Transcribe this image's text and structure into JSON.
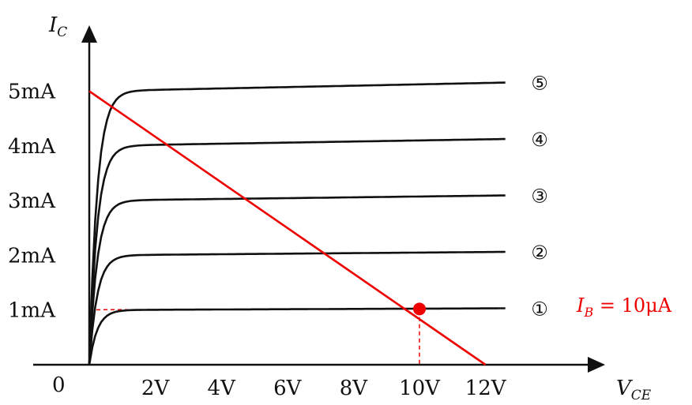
{
  "chart_data": {
    "type": "line",
    "xlabel": "V",
    "xlabel_sub": "CE",
    "ylabel": "I",
    "ylabel_sub": "C",
    "origin_label": "0",
    "xlim": [
      0,
      12.5
    ],
    "ylim": [
      0,
      5.5
    ],
    "x_ticks": [
      "2V",
      "4V",
      "6V",
      "8V",
      "10V",
      "12V"
    ],
    "y_ticks": [
      "1mA",
      "2mA",
      "3mA",
      "4mA",
      "5mA"
    ],
    "curve_labels": [
      "①",
      "②",
      "③",
      "④",
      "⑤"
    ],
    "series": [
      {
        "name": "①",
        "sat_mA": 1.0
      },
      {
        "name": "②",
        "sat_mA": 2.0
      },
      {
        "name": "③",
        "sat_mA": 3.0
      },
      {
        "name": "④",
        "sat_mA": 4.0
      },
      {
        "name": "⑤",
        "sat_mA": 5.0
      }
    ],
    "load_line": {
      "x": [
        0,
        12
      ],
      "y": [
        5,
        0
      ]
    },
    "operating_point": {
      "x": 10,
      "y": 1
    },
    "annotation": {
      "sym": "I",
      "sub": "B",
      "text": " = 10μA"
    },
    "colors": {
      "curves": "#111111",
      "load_line": "#ee0000",
      "annotation": "#ee0000"
    }
  }
}
